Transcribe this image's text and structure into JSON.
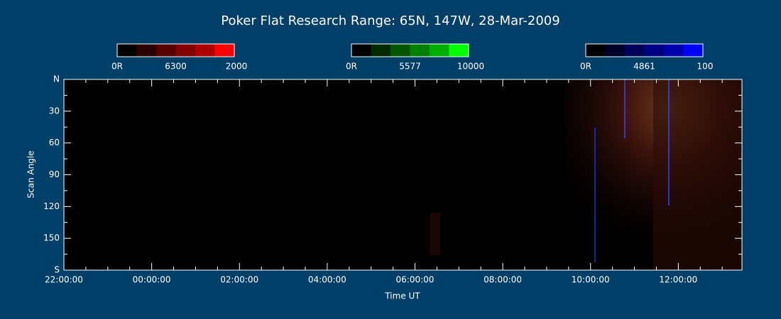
{
  "chart_data": {
    "type": "heatmap",
    "title": "Poker Flat Research Range: 65N, 147W, 28-Mar-2009",
    "xlabel": "Time UT",
    "ylabel": "Scan Angle",
    "xlim": [
      22,
      37.45
    ],
    "xticks": [
      {
        "value": 22,
        "label": "22:00:00"
      },
      {
        "value": 24,
        "label": "00:00:00"
      },
      {
        "value": 26,
        "label": "02:00:00"
      },
      {
        "value": 28,
        "label": "04:00:00"
      },
      {
        "value": 30,
        "label": "06:00:00"
      },
      {
        "value": 32,
        "label": "08:00:00"
      },
      {
        "value": 34,
        "label": "10:00:00"
      },
      {
        "value": 36,
        "label": "12:00:00"
      }
    ],
    "ylim": [
      0,
      180
    ],
    "yticks": [
      {
        "value": 0,
        "label": "N"
      },
      30,
      60,
      90,
      120,
      150,
      {
        "value": 180,
        "label": "S"
      }
    ],
    "colorbars": [
      {
        "name": "6300",
        "min": {
          "value": 0,
          "label": "0R"
        },
        "max": 2000,
        "color": "#ff0000"
      },
      {
        "name": "5577",
        "min": {
          "value": 0,
          "label": "0R"
        },
        "max": 10000,
        "color": "#00ff00"
      },
      {
        "name": "4861",
        "min": {
          "value": 0,
          "label": "0R"
        },
        "max": 100,
        "color": "#0000ff"
      }
    ]
  }
}
